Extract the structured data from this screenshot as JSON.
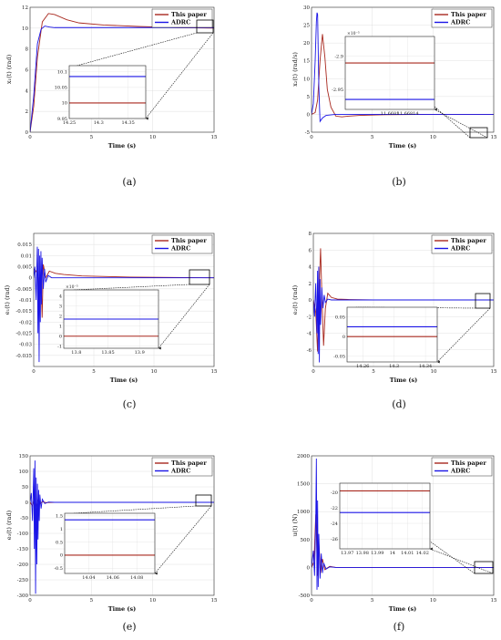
{
  "colors": {
    "this_paper": "#a8281e",
    "adrc": "#1a14e6",
    "axis": "#333333",
    "grid": "#d8d8d8"
  },
  "chart_data": [
    {
      "id": "a",
      "type": "line",
      "caption": "(a)",
      "xlabel": "Time (s)",
      "ylabel": "x₁(t) (rad)",
      "xlim": [
        0,
        15
      ],
      "ylim": [
        0,
        12
      ],
      "xticks": [
        "0",
        "5",
        "10",
        "15"
      ],
      "yticks": [
        "0",
        "2",
        "4",
        "6",
        "8",
        "10",
        "12"
      ],
      "legend": [
        "This paper",
        "ADRC"
      ],
      "legend_position": "top-right",
      "series": [
        {
          "name": "This paper",
          "x": [
            0,
            0.3,
            0.6,
            1.0,
            1.5,
            2.0,
            3.0,
            4.0,
            6.0,
            9.0,
            12.0,
            15.0
          ],
          "y": [
            0,
            2.5,
            7.2,
            10.6,
            11.4,
            11.3,
            10.8,
            10.5,
            10.3,
            10.15,
            10.05,
            10.0
          ]
        },
        {
          "name": "ADRC",
          "x": [
            0,
            0.3,
            0.6,
            0.9,
            1.2,
            1.6,
            2.0,
            4.0,
            8.0,
            12.0,
            15.0
          ],
          "y": [
            0,
            3.5,
            8.5,
            9.9,
            10.2,
            10.1,
            10.05,
            10.05,
            10.05,
            10.05,
            10.05
          ]
        }
      ],
      "inset": {
        "xlim": [
          14.25,
          14.38
        ],
        "ylim": [
          9.95,
          10.12
        ],
        "xticks": [
          "14.25",
          "14.3",
          "14.35"
        ],
        "yticks": [
          "9.95",
          "10",
          "10.05",
          "10.1"
        ],
        "this_paper_level": 10.0,
        "adrc_level": 10.085,
        "multiplier": ""
      }
    },
    {
      "id": "b",
      "type": "line",
      "caption": "(b)",
      "xlabel": "Time (s)",
      "ylabel": "x₂(t) (rad/s)",
      "xlim": [
        0,
        15
      ],
      "ylim": [
        -5,
        30
      ],
      "xticks": [
        "0",
        "5",
        "10",
        "15"
      ],
      "yticks": [
        "-5",
        "0",
        "5",
        "10",
        "15",
        "20",
        "25",
        "30"
      ],
      "legend": [
        "This paper",
        "ADRC"
      ],
      "legend_position": "top-right",
      "series": [
        {
          "name": "This paper",
          "x": [
            0,
            0.3,
            0.5,
            0.7,
            0.9,
            1.1,
            1.3,
            1.6,
            2.0,
            2.5,
            3.0,
            4.0,
            6.0,
            10.0,
            15.0
          ],
          "y": [
            0,
            0.5,
            4,
            15,
            22.5,
            16,
            7,
            2,
            -0.5,
            -0.7,
            -0.5,
            -0.3,
            -0.1,
            0,
            0
          ]
        },
        {
          "name": "ADRC",
          "x": [
            0,
            0.15,
            0.3,
            0.4,
            0.45,
            0.5,
            0.55,
            0.6,
            0.7,
            0.9,
            1.2,
            2.0,
            5.0,
            15.0
          ],
          "y": [
            0,
            3,
            15,
            26,
            28.5,
            28,
            18,
            8,
            -2,
            -1,
            -0.3,
            0,
            0,
            0
          ]
        }
      ],
      "inset": {
        "xlim": [
          11.668,
          11.6682
        ],
        "ylim": [
          -2.98,
          -2.87
        ],
        "xticks": [
          "11.6681",
          "11.66814"
        ],
        "yticks": [
          "-2.9",
          "-2.95"
        ],
        "this_paper_level": -2.91,
        "adrc_level": -2.965,
        "multiplier": "×10⁻⁵"
      }
    },
    {
      "id": "c",
      "type": "line",
      "caption": "(c)",
      "xlabel": "Time (s)",
      "ylabel": "e₁(t) (rad)",
      "xlim": [
        0,
        15
      ],
      "ylim": [
        -0.04,
        0.02
      ],
      "xticks": [
        "0",
        "5",
        "10",
        "15"
      ],
      "yticks": [
        "-0.035",
        "-0.03",
        "-0.025",
        "-0.02",
        "-0.015",
        "-0.01",
        "-0.005",
        "0",
        "0.005",
        "0.01",
        "0.015"
      ],
      "legend": [
        "This paper",
        "ADRC"
      ],
      "legend_position": "top-right",
      "series": [
        {
          "name": "This paper",
          "x": [
            0,
            0.2,
            0.4,
            0.5,
            0.6,
            0.7,
            0.8,
            1.0,
            1.3,
            1.8,
            2.5,
            4.0,
            8.0,
            15.0
          ],
          "y": [
            0.004,
            0.003,
            0.0,
            -0.008,
            0.002,
            -0.018,
            0.006,
            0.0,
            0.003,
            0.002,
            0.0015,
            0.0008,
            0.0003,
            0.0
          ]
        },
        {
          "name": "ADRC",
          "x": [
            0,
            0.1,
            0.2,
            0.3,
            0.35,
            0.4,
            0.45,
            0.5,
            0.55,
            0.6,
            0.65,
            0.7,
            0.8,
            0.9,
            1.0,
            1.2,
            1.5,
            2.0,
            3.0,
            15.0
          ],
          "y": [
            0,
            0.005,
            -0.01,
            0.014,
            -0.025,
            0.013,
            -0.038,
            0.01,
            -0.02,
            0.012,
            -0.012,
            0.009,
            -0.005,
            0.004,
            -0.002,
            0.001,
            0.0,
            0.0,
            0.0,
            0.0
          ]
        }
      ],
      "inset": {
        "xlim": [
          13.78,
          13.93
        ],
        "ylim": [
          -1.2,
          4.6
        ],
        "xticks": [
          "13.8",
          "13.85",
          "13.9"
        ],
        "yticks": [
          "-1",
          "0",
          "1",
          "2",
          "3",
          "4"
        ],
        "this_paper_level": 0.0,
        "adrc_level": 1.7,
        "multiplier": "×10⁻⁵"
      }
    },
    {
      "id": "d",
      "type": "line",
      "caption": "(d)",
      "xlabel": "Time (s)",
      "ylabel": "e₂(t) (rad)",
      "xlim": [
        0,
        15
      ],
      "ylim": [
        -8,
        8
      ],
      "xticks": [
        "0",
        "5",
        "10",
        "15"
      ],
      "yticks": [
        "-6",
        "-4",
        "-2",
        "0",
        "2",
        "4",
        "6",
        "8"
      ],
      "legend": [
        "This paper",
        "ADRC"
      ],
      "legend_position": "top-right",
      "series": [
        {
          "name": "This paper",
          "x": [
            0,
            0.2,
            0.35,
            0.5,
            0.6,
            0.7,
            0.85,
            1.0,
            1.2,
            1.5,
            2.0,
            3.0,
            5.0,
            15.0
          ],
          "y": [
            0,
            -1.5,
            -6.2,
            2,
            6.2,
            1,
            -5.5,
            -1,
            0.8,
            0.3,
            0.1,
            0.05,
            0,
            0
          ]
        },
        {
          "name": "ADRC",
          "x": [
            0,
            0.1,
            0.2,
            0.3,
            0.35,
            0.4,
            0.45,
            0.5,
            0.55,
            0.6,
            0.7,
            0.8,
            0.9,
            1.0,
            1.2,
            1.5,
            2.0,
            15.0
          ],
          "y": [
            0,
            -2,
            2,
            -4,
            3.5,
            -6.5,
            4,
            -7.5,
            2.5,
            -3,
            1.5,
            -1,
            0.6,
            -0.3,
            0.1,
            0,
            0,
            0
          ]
        }
      ],
      "inset": {
        "xlim": [
          14.24,
          14.355
        ],
        "ylim": [
          -0.065,
          0.075
        ],
        "xticks": [
          "14.26",
          "14.3",
          "14.34"
        ],
        "yticks": [
          "-0.05",
          "0",
          "0.05"
        ],
        "this_paper_level": 0.0,
        "adrc_level": 0.025,
        "multiplier": ""
      }
    },
    {
      "id": "e",
      "type": "line",
      "caption": "(e)",
      "xlabel": "Time (s)",
      "ylabel": "e₃(t) (rad)",
      "xlim": [
        0,
        15
      ],
      "ylim": [
        -300,
        150
      ],
      "xticks": [
        "0",
        "5",
        "10",
        "15"
      ],
      "yticks": [
        "-300",
        "-250",
        "-200",
        "-150",
        "-100",
        "-50",
        "0",
        "50",
        "100",
        "150"
      ],
      "legend": [
        "This paper",
        "ADRC"
      ],
      "legend_position": "top-right",
      "series": [
        {
          "name": "This paper",
          "x": [
            0,
            0.2,
            0.35,
            0.5,
            0.65,
            0.8,
            1.0,
            1.3,
            2.0,
            15.0
          ],
          "y": [
            0,
            -12,
            8,
            -14,
            6,
            -5,
            2,
            -1,
            0,
            0
          ]
        },
        {
          "name": "ADRC",
          "x": [
            0,
            0.1,
            0.2,
            0.3,
            0.35,
            0.4,
            0.45,
            0.5,
            0.55,
            0.6,
            0.65,
            0.7,
            0.75,
            0.8,
            0.9,
            1.0,
            1.2,
            1.5,
            2.0,
            15.0
          ],
          "y": [
            0,
            30,
            -60,
            110,
            -150,
            135,
            -295,
            80,
            -200,
            60,
            -120,
            40,
            -60,
            25,
            -20,
            10,
            -4,
            1,
            0,
            0
          ]
        }
      ],
      "inset": {
        "xlim": [
          14.02,
          14.095
        ],
        "ylim": [
          -0.7,
          1.6
        ],
        "xticks": [
          "14.04",
          "14.06",
          "14.08"
        ],
        "yticks": [
          "-0.5",
          "0",
          "0.5",
          "1",
          "1.5"
        ],
        "this_paper_level": 0.0,
        "adrc_level": 1.35,
        "multiplier": ""
      }
    },
    {
      "id": "f",
      "type": "line",
      "caption": "(f)",
      "xlabel": "Time (s)",
      "ylabel": "u(t) (N)",
      "xlim": [
        0,
        15
      ],
      "ylim": [
        -500,
        2000
      ],
      "xticks": [
        "0",
        "5",
        "10",
        "15"
      ],
      "yticks": [
        "-500",
        "0",
        "500",
        "1000",
        "1500",
        "2000"
      ],
      "legend": [
        "This paper",
        "ADRC"
      ],
      "legend_position": "top-right",
      "series": [
        {
          "name": "This paper",
          "x": [
            0,
            0.2,
            0.35,
            0.5,
            0.6,
            0.75,
            0.9,
            1.1,
            1.5,
            2.0,
            15.0
          ],
          "y": [
            0,
            100,
            950,
            -150,
            450,
            -100,
            150,
            -40,
            20,
            0,
            0
          ]
        },
        {
          "name": "ADRC",
          "x": [
            0,
            0.15,
            0.25,
            0.35,
            0.4,
            0.45,
            0.5,
            0.55,
            0.6,
            0.7,
            0.8,
            0.9,
            1.0,
            1.2,
            1.5,
            2.0,
            15.0
          ],
          "y": [
            0,
            300,
            -150,
            900,
            1950,
            -400,
            1200,
            -350,
            600,
            -200,
            250,
            -100,
            80,
            -30,
            10,
            0,
            0
          ]
        }
      ],
      "inset": {
        "xlim": [
          13.965,
          14.025
        ],
        "ylim": [
          -27.3,
          -18.8
        ],
        "xticks": [
          "13.97",
          "13.98",
          "13.99",
          "14",
          "14.01",
          "14.02"
        ],
        "yticks": [
          "-20",
          "-22",
          "-24",
          "-26"
        ],
        "this_paper_level": -19.8,
        "adrc_level": -22.6,
        "multiplier": ""
      }
    }
  ]
}
